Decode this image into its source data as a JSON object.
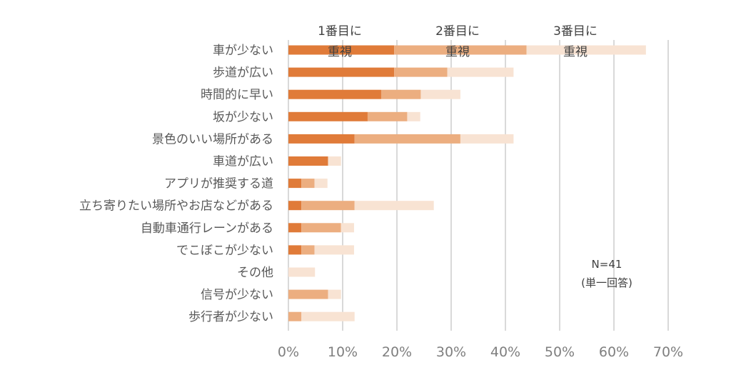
{
  "chart_data": {
    "type": "bar",
    "orientation": "horizontal",
    "stacked": true,
    "categories": [
      "車が少ない",
      "歩道が広い",
      "時間的に早い",
      "坂が少ない",
      "景色のいい場所がある",
      "車道が広い",
      "アプリが推奨する道",
      "立ち寄りたい場所やお店などがある",
      "自動車通行レーンがある",
      "でこぼこが少ない",
      "その他",
      "信号が少ない",
      "歩行者が少ない"
    ],
    "series": [
      {
        "name": "1番目に重視",
        "color": "#e07b39",
        "values": [
          19.5,
          19.5,
          17.1,
          14.6,
          12.2,
          7.3,
          2.4,
          2.4,
          2.4,
          2.4,
          0,
          0,
          0
        ]
      },
      {
        "name": "2番目に重視",
        "color": "#ecae80",
        "values": [
          24.4,
          9.8,
          7.3,
          7.3,
          19.5,
          0,
          2.4,
          9.8,
          7.3,
          2.4,
          0,
          7.3,
          2.4
        ]
      },
      {
        "name": "3番目に重視",
        "color": "#f8e3d3",
        "values": [
          22.0,
          12.2,
          7.3,
          2.4,
          9.8,
          2.4,
          2.4,
          14.6,
          2.4,
          7.3,
          4.9,
          2.4,
          9.8
        ]
      }
    ],
    "legend": [
      {
        "line1": "1番目に",
        "line2": "重視"
      },
      {
        "line1": "2番目に",
        "line2": "重視"
      },
      {
        "line1": "3番目に",
        "line2": "重視"
      }
    ],
    "xticks": [
      "0%",
      "10%",
      "20%",
      "30%",
      "40%",
      "50%",
      "60%",
      "70%"
    ],
    "xlim": [
      0,
      70
    ],
    "grid": true,
    "legend_placement": "top, above bars",
    "annotation": {
      "line1": "N=41",
      "line2": "(単一回答)"
    }
  }
}
